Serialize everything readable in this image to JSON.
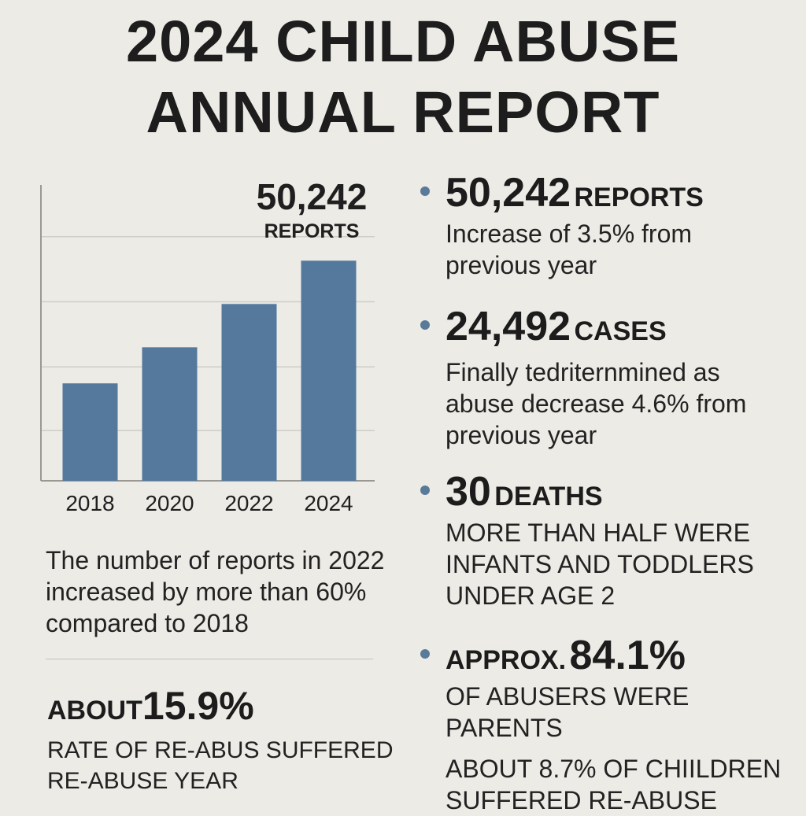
{
  "title": {
    "line1": "2024 CHILD ABUSE",
    "line2": "ANNUAL REPORT"
  },
  "chart_data": {
    "type": "bar",
    "categories": [
      "2018",
      "2020",
      "2022",
      "2024"
    ],
    "values": [
      27,
      37,
      49,
      61
    ],
    "ylim": [
      0,
      82
    ],
    "grid": true,
    "color": "#55799d",
    "callout": {
      "value": "50,242",
      "label": "REPORTS"
    }
  },
  "chart_note": "The number of reports in 2022 increased by more than 60% compared to 2018",
  "rate": {
    "label": "ABOUT",
    "value": "15.9%",
    "desc": "RATE OF RE-ABUS SUFFERED RE-ABUSE YEAR"
  },
  "stats": [
    {
      "number": "50,242",
      "unit": "REPORTS",
      "desc": "Increase of 3.5% from previous year"
    },
    {
      "number": "24,492",
      "unit": "CASES",
      "desc": "Finally tedriternmined as abuse decrease 4.6% from previous year"
    },
    {
      "number": "30",
      "unit": "DEATHS",
      "desc": "MORE THAN HALF  WERE INFANTS AND TODDLERS UNDER AGE 2"
    },
    {
      "prefix": "APPROX.",
      "number": "84.1%",
      "desc": "OF ABUSERS WERE PARENTS"
    }
  ],
  "children_note": "ABOUT 8.7% OF CHIILDREN SUFFERED RE-ABUSE",
  "colors": {
    "background": "#ecebe6",
    "bar": "#55799d",
    "bullet": "#5a7a99",
    "text": "#1c1c1c"
  }
}
